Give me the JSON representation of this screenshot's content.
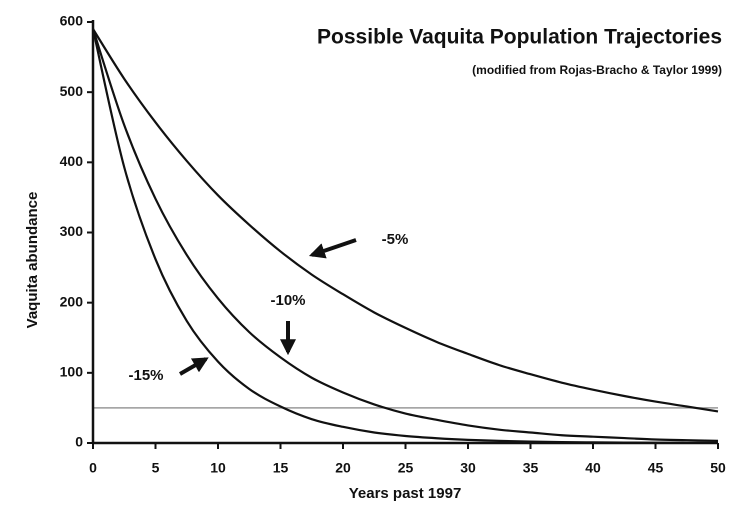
{
  "chart_data": {
    "type": "line",
    "title": "Possible Vaquita Population Trajectories",
    "subtitle": "(modified from Rojas-Bracho & Taylor 1999)",
    "x_label": "Years past 1997",
    "y_label": "Vaquita abundance",
    "x": [
      0,
      2.5,
      5,
      7.5,
      10,
      12.5,
      15,
      17.5,
      20,
      22.5,
      25,
      27.5,
      30,
      32.5,
      35,
      37.5,
      40,
      42.5,
      45,
      47.5,
      50
    ],
    "series": [
      {
        "name": "-5%",
        "color": "#111111",
        "values": [
          590,
          519,
          457,
          402,
          353,
          311,
          273,
          240,
          212,
          186,
          164,
          144,
          127,
          111,
          98,
          86,
          76,
          67,
          59,
          52,
          45
        ]
      },
      {
        "name": "-10%",
        "color": "#111111",
        "values": [
          590,
          453,
          348,
          268,
          206,
          158,
          122,
          93,
          72,
          55,
          42,
          33,
          25,
          19,
          15,
          11,
          9,
          7,
          5,
          4,
          3
        ]
      },
      {
        "name": "-15%",
        "color": "#111111",
        "values": [
          590,
          393,
          262,
          174,
          116,
          77,
          52,
          34,
          23,
          15,
          10,
          6.8,
          4.5,
          3,
          2,
          1.3,
          0.9,
          0.6,
          0.4,
          0.3,
          0.2
        ]
      }
    ],
    "hline": {
      "value": 50,
      "color": "#999999"
    },
    "xlim": [
      0,
      50
    ],
    "ylim": [
      0,
      600
    ],
    "xticks": [
      0,
      5,
      10,
      15,
      20,
      25,
      30,
      35,
      40,
      45,
      50
    ],
    "yticks": [
      0,
      100,
      200,
      300,
      400,
      500,
      600
    ],
    "grid": false
  }
}
